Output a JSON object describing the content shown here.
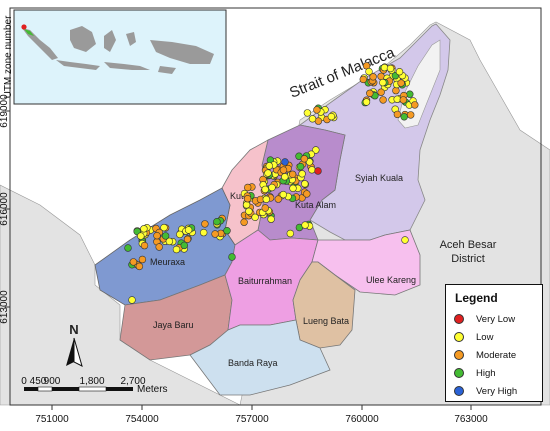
{
  "map": {
    "sea_label": "Strait of Malacca",
    "region_label_line1": "Aceh Besar",
    "region_label_line2": "District",
    "inset_axis_label": "UTM zone number",
    "north_label": "N",
    "districts": {
      "syiah_kuala": "Syiah Kuala",
      "kuta_alam": "Kuta Alam",
      "kuta_raja": "Kuta",
      "meuraxa": "Meuraxa",
      "baiturrahman": "Baiturrahman",
      "ulee_kareng": "Ulee Kareng",
      "lueng_bata": "Lueng Bata",
      "jaya_baru": "Jaya Baru",
      "banda_raya": "Banda Raya"
    },
    "x_ticks": [
      "751000",
      "754000",
      "757000",
      "760000",
      "763000"
    ],
    "y_ticks": [
      "619000",
      "616000",
      "613000"
    ],
    "scale_ticks": [
      "0",
      "450",
      "900",
      "1,800",
      "2,700"
    ],
    "scale_unit": "Meters",
    "colors": {
      "sea": "#ffffff",
      "land": "#e3e3e3",
      "syiah_kuala": "#d3c8ea",
      "kuta_alam": "#b88ccc",
      "kuta_raja": "#f6c2cb",
      "meuraxa": "#7f99d1",
      "baiturrahman": "#ee9fe3",
      "ulee_kareng": "#f7c0ee",
      "lueng_bata": "#dfc1a3",
      "jaya_baru": "#d39898",
      "banda_raya": "#cde0ef"
    }
  },
  "legend": {
    "title": "Legend",
    "items": [
      {
        "label": "Very Low",
        "color": "#e02020"
      },
      {
        "label": "Low",
        "color": "#ffff33"
      },
      {
        "label": "Moderate",
        "color": "#f59a23"
      },
      {
        "label": "High",
        "color": "#44bb33"
      },
      {
        "label": "Very High",
        "color": "#2a62d6"
      }
    ]
  }
}
